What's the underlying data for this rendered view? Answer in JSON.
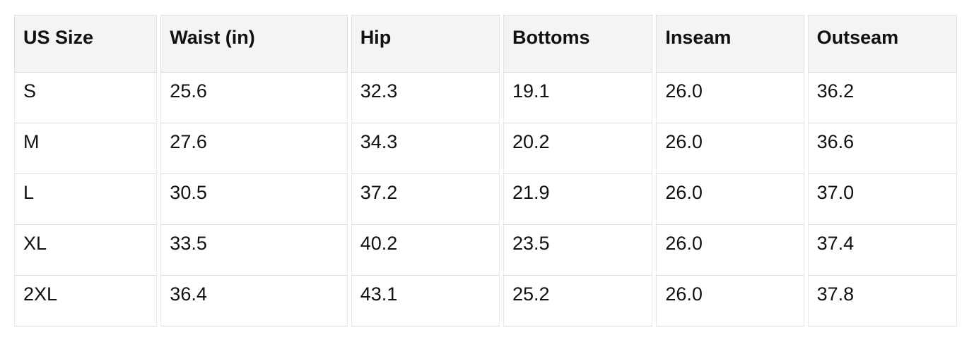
{
  "chart_data": {
    "type": "table",
    "columns": [
      "US Size",
      "Waist (in)",
      "Hip",
      "Bottoms",
      "Inseam",
      "Outseam"
    ],
    "rows": [
      [
        "S",
        "25.6",
        "32.3",
        "19.1",
        "26.0",
        "36.2"
      ],
      [
        "M",
        "27.6",
        "34.3",
        "20.2",
        "26.0",
        "36.6"
      ],
      [
        "L",
        "30.5",
        "37.2",
        "21.9",
        "26.0",
        "37.0"
      ],
      [
        "XL",
        "33.5",
        "40.2",
        "23.5",
        "26.0",
        "37.4"
      ],
      [
        "2XL",
        "36.4",
        "43.1",
        "25.2",
        "26.0",
        "37.8"
      ]
    ],
    "layout": {
      "header_position": "top",
      "grid": "light-gray cell borders with white gaps between columns"
    }
  },
  "colors": {
    "header_background": "#f4f4f4",
    "row_background": "#ffffff",
    "horizontal_border": "#dcdcdc",
    "vertical_border": "#e9e9e9",
    "text": "#111111"
  }
}
